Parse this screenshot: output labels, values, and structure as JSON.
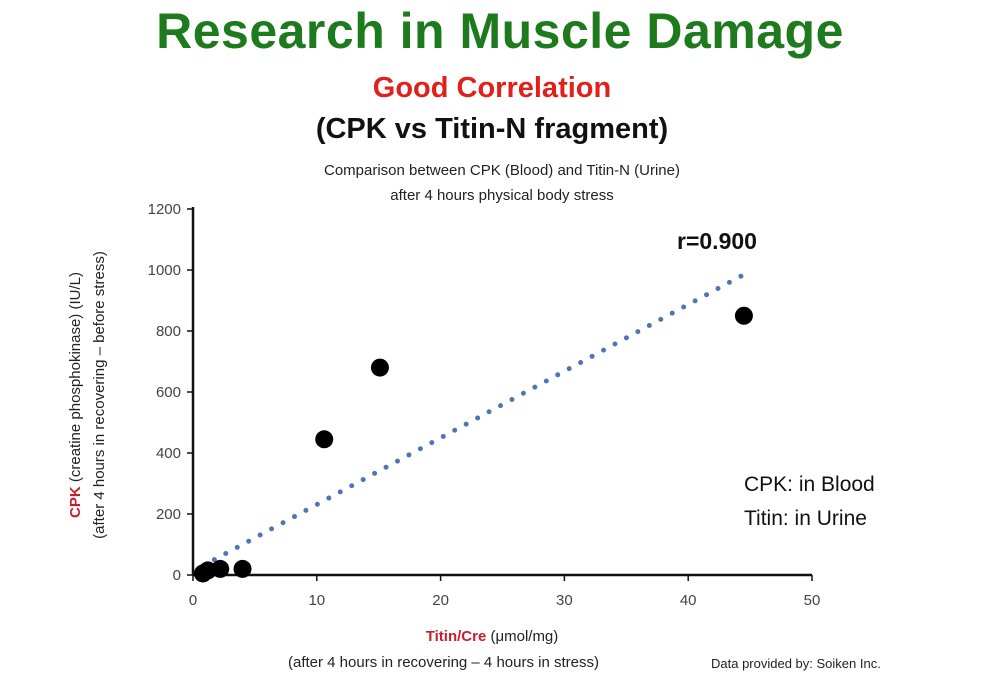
{
  "header": {
    "title": "Research in Muscle Damage",
    "subtitle_red": "Good Correlation",
    "subtitle_black": "(CPK vs Titin-N fragment)",
    "description_line1": "Comparison between CPK (Blood) and Titin-N (Urine)",
    "description_line2": "after 4 hours physical body stress"
  },
  "annotations": {
    "correlation": "r=0.900",
    "note_line1": "CPK:  in Blood",
    "note_line2": "Titin: in Urine",
    "credit": "Data provided by: Soiken Inc."
  },
  "axes": {
    "x_label_main": "Titin/Cre",
    "x_label_unit": " (μmol/mg)",
    "x_label_line2": "(after 4 hours in recovering – 4 hours in stress)",
    "y_label_main": "CPK",
    "y_label_rest": " (creatine phosphokinase) (IU/L)",
    "y_label_line2": "(after 4 hours in recovering – before stress)"
  },
  "chart_data": {
    "type": "scatter",
    "title": "Research in Muscle Damage",
    "subtitle": "Good Correlation (CPK vs Titin-N fragment)",
    "xlabel": "Titin/Cre (μmol/mg) (after 4 hours in recovering – 4 hours in stress)",
    "ylabel": "CPK (creatine phosphokinase) (IU/L) (after 4 hours in recovering – before stress)",
    "xlim": [
      0,
      50
    ],
    "ylim": [
      0,
      1200
    ],
    "x_ticks": [
      0,
      10,
      20,
      30,
      40,
      50
    ],
    "y_ticks": [
      0,
      200,
      400,
      600,
      800,
      1000,
      1200
    ],
    "grid": false,
    "series": [
      {
        "points": [
          {
            "x": 0.8,
            "y": 5
          },
          {
            "x": 1.2,
            "y": 15
          },
          {
            "x": 2.2,
            "y": 20
          },
          {
            "x": 4.0,
            "y": 20
          },
          {
            "x": 10.6,
            "y": 445
          },
          {
            "x": 15.1,
            "y": 680
          },
          {
            "x": 44.5,
            "y": 850
          }
        ],
        "color": "#000000"
      }
    ],
    "trendline": {
      "style": "dotted",
      "color": "#4f74b8",
      "x": [
        0.8,
        44.5
      ],
      "y": [
        30,
        985
      ]
    },
    "annotation": "r=0.900"
  }
}
